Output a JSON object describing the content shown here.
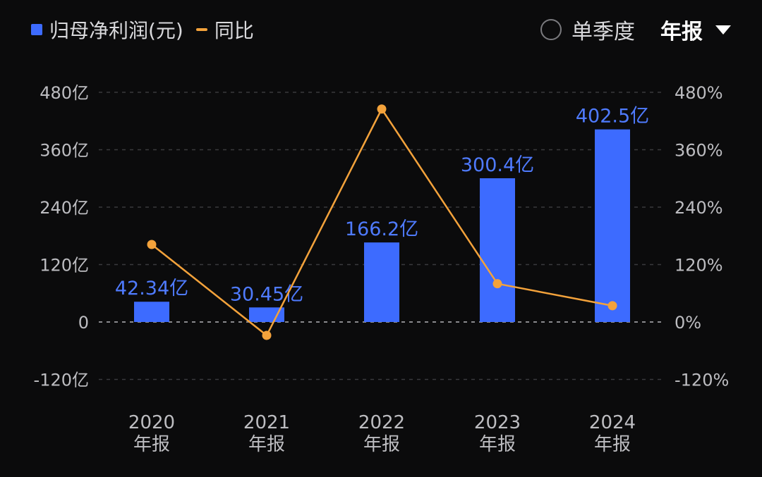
{
  "legend": {
    "bar_label": "归母净利润(元)",
    "line_label": "同比"
  },
  "controls": {
    "single_quarter": "单季度",
    "annual": "年报"
  },
  "colors": {
    "bar": "#3d6bff",
    "line": "#f3a23b",
    "bar_label": "#4f7bff"
  },
  "chart_data": {
    "type": "bar",
    "categories": [
      "2020",
      "2021",
      "2022",
      "2023",
      "2024"
    ],
    "category_sublabel": "年报",
    "series": [
      {
        "name": "归母净利润(元)",
        "type": "bar",
        "axis": "left",
        "values": [
          42.34,
          30.45,
          166.2,
          300.4,
          402.5
        ],
        "labels": [
          "42.34亿",
          "30.45亿",
          "166.2亿",
          "300.4亿",
          "402.5亿"
        ]
      },
      {
        "name": "同比",
        "type": "line",
        "axis": "right",
        "values": [
          162,
          -28,
          445,
          80,
          34
        ]
      }
    ],
    "y_left": {
      "min": -120,
      "max": 480,
      "step": 120,
      "tick_labels": [
        "-120亿",
        "0",
        "120亿",
        "240亿",
        "360亿",
        "480亿"
      ]
    },
    "y_right": {
      "min": -120,
      "max": 480,
      "step": 120,
      "tick_labels": [
        "-120%",
        "0%",
        "120%",
        "240%",
        "360%",
        "480%"
      ]
    },
    "grid": "dashed horizontal",
    "legend": "top-left"
  }
}
